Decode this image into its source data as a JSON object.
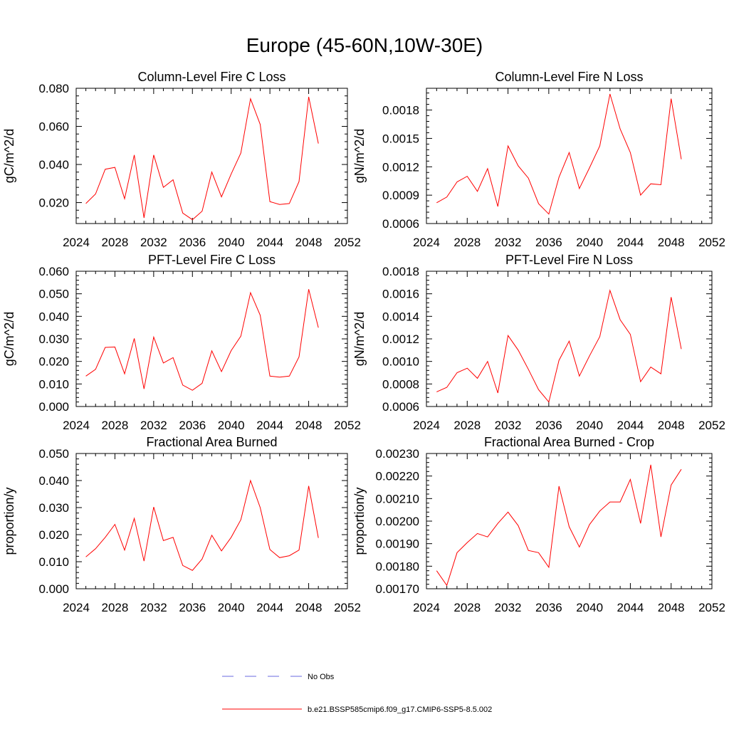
{
  "title": "Europe (45-60N,10W-30E)",
  "colors": {
    "model": "#ff0000",
    "obs": "#6a6adf",
    "axis": "#000000"
  },
  "legend": [
    {
      "label": "No Obs",
      "style": "dashed",
      "color": "#6a6adf"
    },
    {
      "label": "b.e21.BSSP585cmip6.f09_g17.CMIP6-SSP5-8.5.002",
      "style": "solid",
      "color": "#ff0000"
    }
  ],
  "chart_data": [
    {
      "type": "line",
      "title": "Column-Level Fire C Loss",
      "ylabel": "gC/m^2/d",
      "xlim": [
        2024,
        2052
      ],
      "ylim": [
        0.009,
        0.08
      ],
      "xticks": [
        2024,
        2028,
        2032,
        2036,
        2040,
        2044,
        2048,
        2052
      ],
      "yticks": [
        0.02,
        0.04,
        0.06,
        0.08
      ],
      "ytick_labels": [
        "0.020",
        "0.040",
        "0.060",
        "0.080"
      ],
      "x": [
        2025,
        2026,
        2027,
        2028,
        2029,
        2030,
        2031,
        2032,
        2033,
        2034,
        2035,
        2036,
        2037,
        2038,
        2039,
        2040,
        2041,
        2042,
        2043,
        2044,
        2045,
        2046,
        2047,
        2048,
        2049
      ],
      "series": [
        {
          "values": [
            0.0195,
            0.0245,
            0.0375,
            0.0385,
            0.022,
            0.045,
            0.012,
            0.045,
            0.028,
            0.032,
            0.0145,
            0.011,
            0.0155,
            0.036,
            0.023,
            0.035,
            0.046,
            0.0745,
            0.061,
            0.0205,
            0.019,
            0.0195,
            0.031,
            0.0755,
            0.051
          ]
        }
      ]
    },
    {
      "type": "line",
      "title": "Column-Level Fire N Loss",
      "ylabel": "gN/m^2/d",
      "xlim": [
        2024,
        2052
      ],
      "ylim": [
        0.0006,
        0.00203
      ],
      "xticks": [
        2024,
        2028,
        2032,
        2036,
        2040,
        2044,
        2048,
        2052
      ],
      "yticks": [
        0.0006,
        0.0009,
        0.0012,
        0.0015,
        0.0018
      ],
      "ytick_labels": [
        "0.0006",
        "0.0009",
        "0.0012",
        "0.0015",
        "0.0018"
      ],
      "x": [
        2025,
        2026,
        2027,
        2028,
        2029,
        2030,
        2031,
        2032,
        2033,
        2034,
        2035,
        2036,
        2037,
        2038,
        2039,
        2040,
        2041,
        2042,
        2043,
        2044,
        2045,
        2046,
        2047,
        2048,
        2049
      ],
      "series": [
        {
          "values": [
            0.00082,
            0.00088,
            0.00104,
            0.0011,
            0.00094,
            0.00118,
            0.00078,
            0.00142,
            0.00121,
            0.00108,
            0.00081,
            0.0007,
            0.00109,
            0.00135,
            0.00097,
            0.00119,
            0.00142,
            0.00197,
            0.0016,
            0.00135,
            0.0009,
            0.00102,
            0.00101,
            0.00192,
            0.00128
          ]
        }
      ]
    },
    {
      "type": "line",
      "title": "PFT-Level Fire C Loss",
      "ylabel": "gC/m^2/d",
      "xlim": [
        2024,
        2052
      ],
      "ylim": [
        0.0,
        0.06
      ],
      "xticks": [
        2024,
        2028,
        2032,
        2036,
        2040,
        2044,
        2048,
        2052
      ],
      "yticks": [
        0.0,
        0.01,
        0.02,
        0.03,
        0.04,
        0.05,
        0.06
      ],
      "ytick_labels": [
        "0.000",
        "0.010",
        "0.020",
        "0.030",
        "0.040",
        "0.050",
        "0.060"
      ],
      "x": [
        2025,
        2026,
        2027,
        2028,
        2029,
        2030,
        2031,
        2032,
        2033,
        2034,
        2035,
        2036,
        2037,
        2038,
        2039,
        2040,
        2041,
        2042,
        2043,
        2044,
        2045,
        2046,
        2047,
        2048,
        2049
      ],
      "series": [
        {
          "values": [
            0.0135,
            0.0165,
            0.0262,
            0.0264,
            0.0145,
            0.0302,
            0.0078,
            0.0308,
            0.0193,
            0.0217,
            0.0095,
            0.0072,
            0.0103,
            0.0247,
            0.0155,
            0.0248,
            0.0312,
            0.0505,
            0.0405,
            0.0135,
            0.013,
            0.0135,
            0.022,
            0.052,
            0.035
          ]
        }
      ]
    },
    {
      "type": "line",
      "title": "PFT-Level Fire N Loss",
      "ylabel": "gN/m^2/d",
      "xlim": [
        2024,
        2052
      ],
      "ylim": [
        0.0006,
        0.0018
      ],
      "xticks": [
        2024,
        2028,
        2032,
        2036,
        2040,
        2044,
        2048,
        2052
      ],
      "yticks": [
        0.0006,
        0.0008,
        0.001,
        0.0012,
        0.0014,
        0.0016,
        0.0018
      ],
      "ytick_labels": [
        "0.0006",
        "0.0008",
        "0.0010",
        "0.0012",
        "0.0014",
        "0.0016",
        "0.0018"
      ],
      "x": [
        2025,
        2026,
        2027,
        2028,
        2029,
        2030,
        2031,
        2032,
        2033,
        2034,
        2035,
        2036,
        2037,
        2038,
        2039,
        2040,
        2041,
        2042,
        2043,
        2044,
        2045,
        2046,
        2047,
        2048,
        2049
      ],
      "series": [
        {
          "values": [
            0.00073,
            0.00077,
            0.0009,
            0.00094,
            0.00085,
            0.001,
            0.00072,
            0.00123,
            0.0011,
            0.00093,
            0.00075,
            0.00064,
            0.00101,
            0.00118,
            0.00087,
            0.00105,
            0.00122,
            0.00163,
            0.00137,
            0.00124,
            0.00082,
            0.00095,
            0.00089,
            0.00157,
            0.00111
          ]
        }
      ]
    },
    {
      "type": "line",
      "title": "Fractional Area Burned",
      "ylabel": "proportion/y",
      "xlim": [
        2024,
        2052
      ],
      "ylim": [
        0.0,
        0.05
      ],
      "xticks": [
        2024,
        2028,
        2032,
        2036,
        2040,
        2044,
        2048,
        2052
      ],
      "yticks": [
        0.0,
        0.01,
        0.02,
        0.03,
        0.04,
        0.05
      ],
      "ytick_labels": [
        "0.000",
        "0.010",
        "0.020",
        "0.030",
        "0.040",
        "0.050"
      ],
      "x": [
        2025,
        2026,
        2027,
        2028,
        2029,
        2030,
        2031,
        2032,
        2033,
        2034,
        2035,
        2036,
        2037,
        2038,
        2039,
        2040,
        2041,
        2042,
        2043,
        2044,
        2045,
        2046,
        2047,
        2048,
        2049
      ],
      "series": [
        {
          "values": [
            0.0118,
            0.0148,
            0.019,
            0.0238,
            0.0143,
            0.026,
            0.0102,
            0.0302,
            0.0178,
            0.019,
            0.0086,
            0.0068,
            0.011,
            0.0198,
            0.014,
            0.019,
            0.0255,
            0.04,
            0.03,
            0.0145,
            0.0115,
            0.0122,
            0.0143,
            0.038,
            0.0188
          ]
        }
      ]
    },
    {
      "type": "line",
      "title": "Fractional Area Burned - Crop",
      "ylabel": "proportion/y",
      "xlim": [
        2024,
        2052
      ],
      "ylim": [
        0.0017,
        0.0023
      ],
      "xticks": [
        2024,
        2028,
        2032,
        2036,
        2040,
        2044,
        2048,
        2052
      ],
      "yticks": [
        0.0017,
        0.0018,
        0.0019,
        0.002,
        0.0021,
        0.0022,
        0.0023
      ],
      "ytick_labels": [
        "0.00170",
        "0.00180",
        "0.00190",
        "0.00200",
        "0.00210",
        "0.00220",
        "0.00230"
      ],
      "x": [
        2025,
        2026,
        2027,
        2028,
        2029,
        2030,
        2031,
        2032,
        2033,
        2034,
        2035,
        2036,
        2037,
        2038,
        2039,
        2040,
        2041,
        2042,
        2043,
        2044,
        2045,
        2046,
        2047,
        2048,
        2049
      ],
      "series": [
        {
          "values": [
            0.00178,
            0.001715,
            0.00186,
            0.001905,
            0.001945,
            0.00193,
            0.00199,
            0.00204,
            0.00198,
            0.00187,
            0.00186,
            0.001795,
            0.002155,
            0.001975,
            0.001885,
            0.001985,
            0.002045,
            0.002085,
            0.002085,
            0.002185,
            0.00199,
            0.00225,
            0.00193,
            0.00216,
            0.00223
          ]
        }
      ]
    }
  ]
}
